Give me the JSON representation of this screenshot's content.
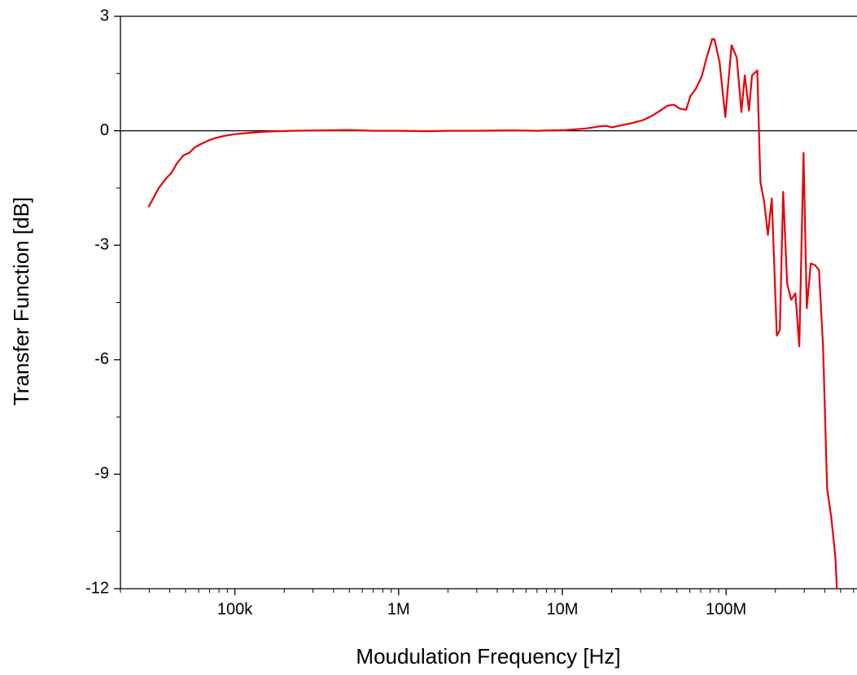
{
  "chart_data": {
    "type": "line",
    "x_label": "Moudulation Frequency [Hz]",
    "y_label": "Transfer Function [dB]",
    "xscale": "log",
    "xlim": [
      20000,
      630000000
    ],
    "ylim": [
      -12,
      3
    ],
    "xticks": [
      {
        "value": 100000,
        "label": "100k"
      },
      {
        "value": 1000000,
        "label": "1M"
      },
      {
        "value": 10000000,
        "label": "10M"
      },
      {
        "value": 100000000,
        "label": "100M"
      }
    ],
    "yticks": [
      3,
      0,
      -3,
      -6,
      -9,
      -12
    ],
    "minor_ticks": true,
    "reference_line": 0,
    "series": [
      {
        "color": "#e8000b",
        "x": [
          29700,
          34400,
          38200,
          40900,
          44300,
          48600,
          52600,
          57000,
          62500,
          68500,
          76000,
          87000,
          100000,
          127000,
          160000,
          225000,
          350000,
          500000,
          700000,
          1000000,
          1500000,
          2000000,
          3000000,
          5000000,
          7000000,
          10500000,
          13900000,
          16600000,
          18600000,
          20000000,
          23300000,
          27100000,
          31100000,
          34900000,
          39100000,
          43900000,
          48100000,
          52100000,
          57000000,
          60400000,
          65500000,
          71000000,
          76100000,
          82300000,
          85000000,
          91300000,
          98900000,
          108000000,
          116000000,
          124000000,
          130000000,
          138000000,
          144000000,
          155000000,
          162000000,
          171000000,
          180000000,
          190000000,
          204000000,
          213000000,
          223000000,
          236000000,
          250000000,
          265000000,
          280000000,
          297000000,
          311000000,
          329000000,
          349000000,
          369000000,
          391000000,
          414000000,
          439000000,
          465000000,
          475000000
        ],
        "values": [
          -2.0,
          -1.49,
          -1.24,
          -1.11,
          -0.85,
          -0.64,
          -0.58,
          -0.43,
          -0.34,
          -0.26,
          -0.19,
          -0.13,
          -0.09,
          -0.05,
          -0.02,
          0,
          0.01,
          0.02,
          0,
          0,
          -0.01,
          0,
          0,
          0.01,
          0,
          0.02,
          0.06,
          0.11,
          0.13,
          0.09,
          0.15,
          0.21,
          0.28,
          0.38,
          0.51,
          0.66,
          0.68,
          0.58,
          0.55,
          0.9,
          1.11,
          1.43,
          1.92,
          2.41,
          2.39,
          1.79,
          0.36,
          2.24,
          1.92,
          0.49,
          1.45,
          0.53,
          1.45,
          1.58,
          -1.34,
          -1.88,
          -2.73,
          -1.77,
          -5.37,
          -5.22,
          -1.6,
          -4.01,
          -4.43,
          -4.26,
          -5.65,
          -0.58,
          -4.65,
          -3.48,
          -3.52,
          -3.65,
          -5.65,
          -9.38,
          -10.13,
          -11.19,
          -12.0
        ]
      }
    ]
  }
}
